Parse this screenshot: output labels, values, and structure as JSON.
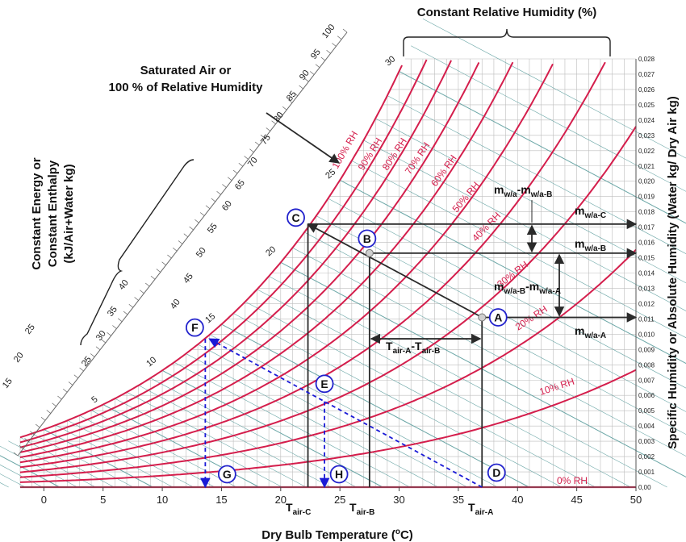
{
  "chart_data": {
    "type": "psychrometric",
    "title": "Constant Relative Humidity (%)",
    "xlabel": "Dry Bulb Temperature (",
    "xlabel_sup": "o",
    "xlabel_end": "C)",
    "ylabel": "Specific Humidity or Absolute Humidity (Water kg/ Dry Air kg)",
    "xlim": [
      -2,
      50
    ],
    "ylim": [
      0,
      0.028
    ],
    "x_ticks": [
      "0",
      "5",
      "10",
      "15",
      "20",
      "25",
      "30",
      "35",
      "40",
      "45",
      "50"
    ],
    "y_ticks": [
      "0,00",
      "0,001",
      "0,002",
      "0,003",
      "0,004",
      "0,005",
      "0,006",
      "0,007",
      "0,008",
      "0,009",
      "0,010",
      "0,011",
      "0,012",
      "0,013",
      "0,014",
      "0,015",
      "0,016",
      "0,017",
      "0,018",
      "0,019",
      "0,020",
      "0,021",
      "0,022",
      "0,023",
      "0,024",
      "0,025",
      "0,026",
      "0,027",
      "0,028"
    ],
    "rh_curves": [
      {
        "rh": 100,
        "label": "100% RH"
      },
      {
        "rh": 90,
        "label": "90% RH"
      },
      {
        "rh": 80,
        "label": "80% RH"
      },
      {
        "rh": 70,
        "label": "70% RH"
      },
      {
        "rh": 60,
        "label": "60% RH"
      },
      {
        "rh": 50,
        "label": "50% RH"
      },
      {
        "rh": 40,
        "label": "40% RH"
      },
      {
        "rh": 30,
        "label": "30% RH"
      },
      {
        "rh": 20,
        "label": "20% RH"
      },
      {
        "rh": 10,
        "label": "10% RH"
      },
      {
        "rh": 0,
        "label": "0% RH"
      }
    ],
    "wetbulb_labels": [
      "5",
      "10",
      "15",
      "20",
      "25",
      "30"
    ],
    "enthalpy_labels": [
      "15",
      "20",
      "25",
      "25",
      "30",
      "35",
      "40",
      "40",
      "45",
      "50",
      "55",
      "60",
      "65",
      "70",
      "75",
      "80",
      "85",
      "90",
      "95",
      "100"
    ],
    "points": [
      {
        "name": "A",
        "t": 37,
        "w": 0.0111
      },
      {
        "name": "B",
        "t": 27.5,
        "w": 0.0153
      },
      {
        "name": "C",
        "t": 22.3,
        "w": 0.0172
      },
      {
        "name": "D",
        "t": 37,
        "w": 0.0
      },
      {
        "name": "E",
        "t": 23.7,
        "w": 0.0056
      },
      {
        "name": "F",
        "t": 13.7,
        "w": 0.0098
      },
      {
        "name": "G",
        "t": 13.7,
        "w": 0.0
      },
      {
        "name": "H",
        "t": 23.7,
        "w": 0.0
      }
    ],
    "temp_markers": [
      {
        "base": "T",
        "sub": "air-C",
        "t": 22.3
      },
      {
        "base": "T",
        "sub": "air-B",
        "t": 27.5
      },
      {
        "base": "T",
        "sub": "air-A",
        "t": 37
      }
    ],
    "humidity_labels": [
      {
        "base": "m",
        "sub": "w/a-C",
        "w": 0.0172
      },
      {
        "base": "m",
        "sub": "w/a-B",
        "w": 0.0153
      },
      {
        "base": "m",
        "sub": "w/a-A",
        "w": 0.0111
      }
    ],
    "diff_labels": {
      "cb_base": "m",
      "cb_sub1": "w/a",
      "cb_mid": "-m",
      "cb_sub2": "w/a-B",
      "ba_base": "m",
      "ba_sub1": "w/a-B",
      "ba_mid": "-m",
      "ba_sub2": "w/a-A",
      "t_base": "T",
      "t_sub1": "air-A",
      "t_mid": "-T",
      "t_sub2": "air-B"
    },
    "annotations": {
      "saturated_line1": "Saturated Air or",
      "saturated_line2": "100 % of Relative Humidity",
      "enthalpy_line1": "Constant Energy or",
      "enthalpy_line2": "Constant Enthalpy",
      "enthalpy_line3": "(kJ/Air+Water kg)"
    },
    "colors": {
      "rh": "#d41e4c",
      "grid": "#bdbdbd",
      "wetbulb": "#6aa6a6",
      "process": "#2a2a2a",
      "dashed": "#1a1ad6",
      "marker": "#2222cc"
    }
  }
}
